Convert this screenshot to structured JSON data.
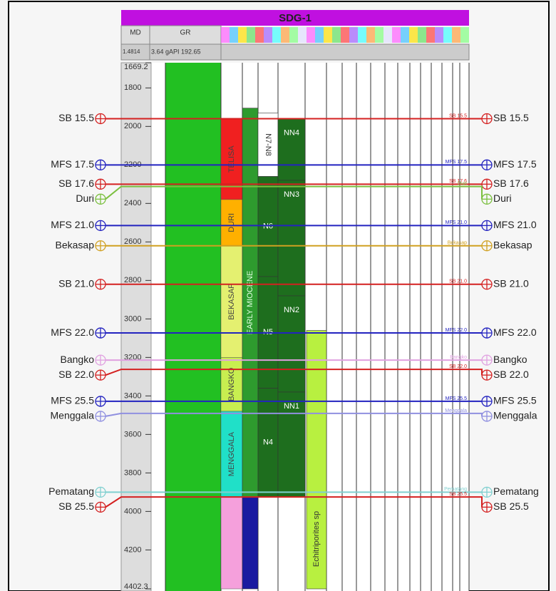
{
  "header": {
    "title": "SDG-1",
    "md_label": "MD",
    "gr_label": "GR",
    "md_scale": "1.4814",
    "gr_scale": "3.64 gAPI 192.65"
  },
  "depth_axis": {
    "range": [
      1669.2,
      4402.3
    ],
    "ticks": [
      1669.2,
      1800,
      2000,
      2200,
      2400,
      2600,
      2800,
      3000,
      3200,
      3400,
      3600,
      3800,
      4000,
      4200,
      4402.3
    ]
  },
  "horizons": [
    {
      "label": "SB 15.5",
      "depth": 1960,
      "color": "#d42020"
    },
    {
      "label": "MFS 17.5",
      "depth": 2200,
      "color": "#2323c0"
    },
    {
      "label": "SB 17.6",
      "depth": 2300,
      "color": "#d42020"
    },
    {
      "label": "Duri",
      "depth": 2312,
      "color": "#7cc040"
    },
    {
      "label": "MFS 21.0",
      "depth": 2515,
      "color": "#2323c0"
    },
    {
      "label": "Bekasap",
      "depth": 2620,
      "color": "#d0a020"
    },
    {
      "label": "SB 21.0",
      "depth": 2820,
      "color": "#d42020"
    },
    {
      "label": "MFS 22.0",
      "depth": 3073,
      "color": "#2323c0"
    },
    {
      "label": "Bangko",
      "depth": 3214,
      "color": "#e0a0e0"
    },
    {
      "label": "SB 22.0",
      "depth": 3262,
      "color": "#d42020"
    },
    {
      "label": "MFS 25.5",
      "depth": 3428,
      "color": "#2323c0"
    },
    {
      "label": "Menggala",
      "depth": 3491,
      "color": "#9090e0"
    },
    {
      "label": "Pematang",
      "depth": 3900,
      "color": "#80d0d0"
    },
    {
      "label": "SB 25.5",
      "depth": 3925,
      "color": "#d42020"
    }
  ],
  "formations": [
    {
      "label": "TELISA",
      "top": 1960,
      "base": 2380,
      "color": "#f02020"
    },
    {
      "label": "DURI",
      "top": 2380,
      "base": 2620,
      "color": "#ffb000"
    },
    {
      "label": "BEKASAP",
      "top": 2620,
      "base": 3200,
      "color": "#e4f070"
    },
    {
      "label": "BANGKO",
      "top": 3200,
      "base": 3480,
      "color": "#c8ee50"
    },
    {
      "label": "MENGGALA",
      "top": 3480,
      "base": 3925,
      "color": "#20e0c8"
    },
    {
      "top": 3925,
      "base": 4402.3,
      "color": "#f5a0dc"
    }
  ],
  "epochs": [
    {
      "label": "EARLY MIOCENE",
      "top": 1905,
      "base": 3925,
      "color": "#2e9b2e"
    },
    {
      "top": 3925,
      "base": 4402.3,
      "color": "#1a1aa0"
    }
  ],
  "planktonic_zones": [
    {
      "label": "N7-N8",
      "top": 1930,
      "base": 2260,
      "color": "#ffffff"
    },
    {
      "label": "N6",
      "top": 2260,
      "base": 2780,
      "color": "#1e6e1e"
    },
    {
      "label": "N5",
      "top": 2780,
      "base": 3360,
      "color": "#1e6e1e"
    },
    {
      "label": "N4",
      "top": 3360,
      "base": 3925,
      "color": "#1e6e1e"
    }
  ],
  "nannofossil_zones": [
    {
      "label": "NN4",
      "top": 1960,
      "base": 2280,
      "color": "#1e6e1e"
    },
    {
      "label": "NN3",
      "top": 2280,
      "base": 2880,
      "color": "#1e6e1e"
    },
    {
      "label": "NN2",
      "top": 2880,
      "base": 3380,
      "color": "#1e6e1e"
    },
    {
      "label": "NN1",
      "top": 3380,
      "base": 3925,
      "color": "#1e6e1e"
    }
  ],
  "palyno_zones": [
    {
      "label": "Echitriporites sp",
      "top": 3060,
      "base": 4402.3,
      "color": "#b8f040"
    }
  ]
}
